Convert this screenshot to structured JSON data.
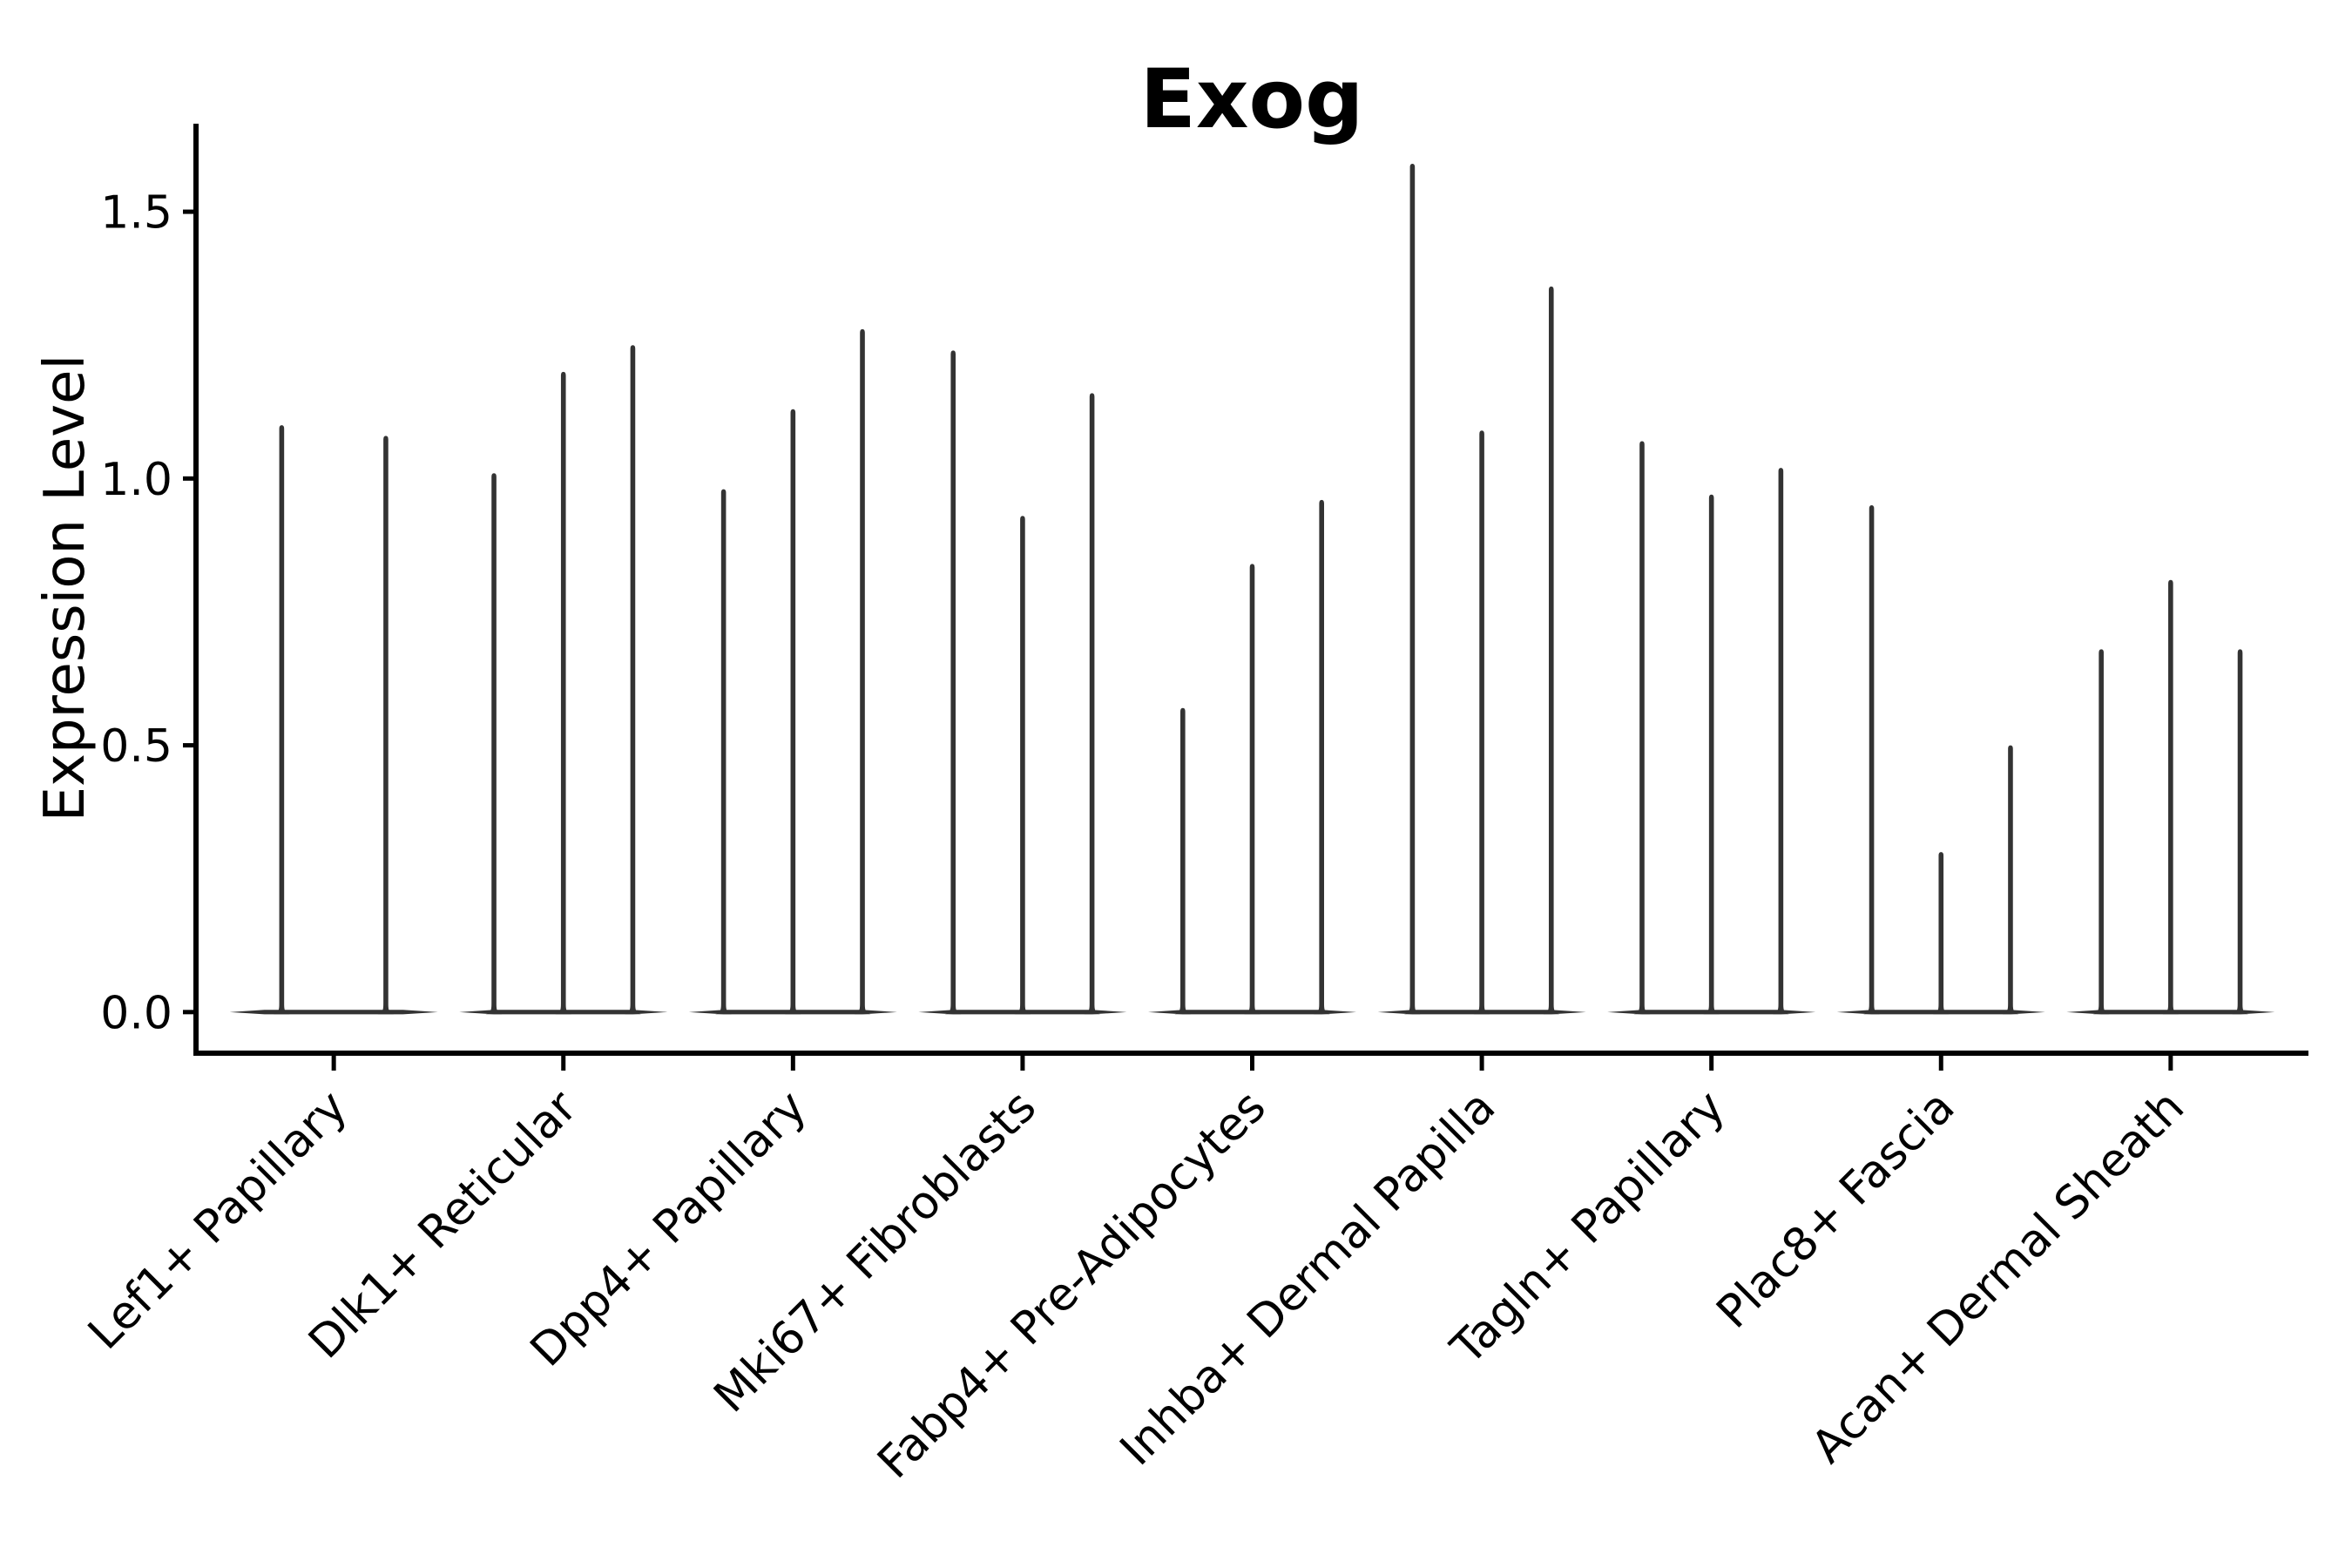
{
  "chart_data": {
    "type": "violin",
    "title": "Exog",
    "ylabel": "Expression Level",
    "xlabel": "",
    "yticks": [
      0.0,
      0.5,
      1.0,
      1.5
    ],
    "ytick_labels": [
      "0.0",
      "0.5",
      "1.0",
      "1.5"
    ],
    "ylim": [
      -0.077,
      1.665
    ],
    "xlim": [
      -0.6,
      8.6
    ],
    "grid": false,
    "legend": "none",
    "categories": [
      "Lef1+ Papillary",
      "Dlk1+ Reticular",
      "Dpp4+ Papillary",
      "Mki67+ Fibroblasts",
      "Fabp4+ Pre-Adipocytes",
      "Inhba+ Dermal Papilla",
      "Tagln+ Papillary",
      "Plac8+ Fascia",
      "Acan+ Dermal Sheath"
    ],
    "groups": [
      {
        "category": "Lef1+ Papillary",
        "violin_peaks": [
          1.1,
          1.08
        ]
      },
      {
        "category": "Dlk1+ Reticular",
        "violin_peaks": [
          1.01,
          1.2,
          1.25
        ]
      },
      {
        "category": "Dpp4+ Papillary",
        "violin_peaks": [
          0.98,
          1.13,
          1.28
        ]
      },
      {
        "category": "Mki67+ Fibroblasts",
        "violin_peaks": [
          1.24,
          0.93,
          1.16
        ]
      },
      {
        "category": "Fabp4+ Pre-Adipocytes",
        "violin_peaks": [
          0.57,
          0.84,
          0.96
        ]
      },
      {
        "category": "Inhba+ Dermal Papilla",
        "violin_peaks": [
          1.59,
          1.09,
          1.36
        ]
      },
      {
        "category": "Tagln+ Papillary",
        "violin_peaks": [
          1.07,
          0.97,
          1.02
        ]
      },
      {
        "category": "Plac8+ Fascia",
        "violin_peaks": [
          0.95,
          0.3,
          0.5
        ]
      },
      {
        "category": "Acan+ Dermal Sheath",
        "violin_peaks": [
          0.68,
          0.81,
          0.68
        ]
      }
    ],
    "baseline_value": 0.0
  },
  "colors": {
    "violin": "#333333",
    "axis": "#000000",
    "text": "#000000",
    "background": "#ffffff"
  }
}
